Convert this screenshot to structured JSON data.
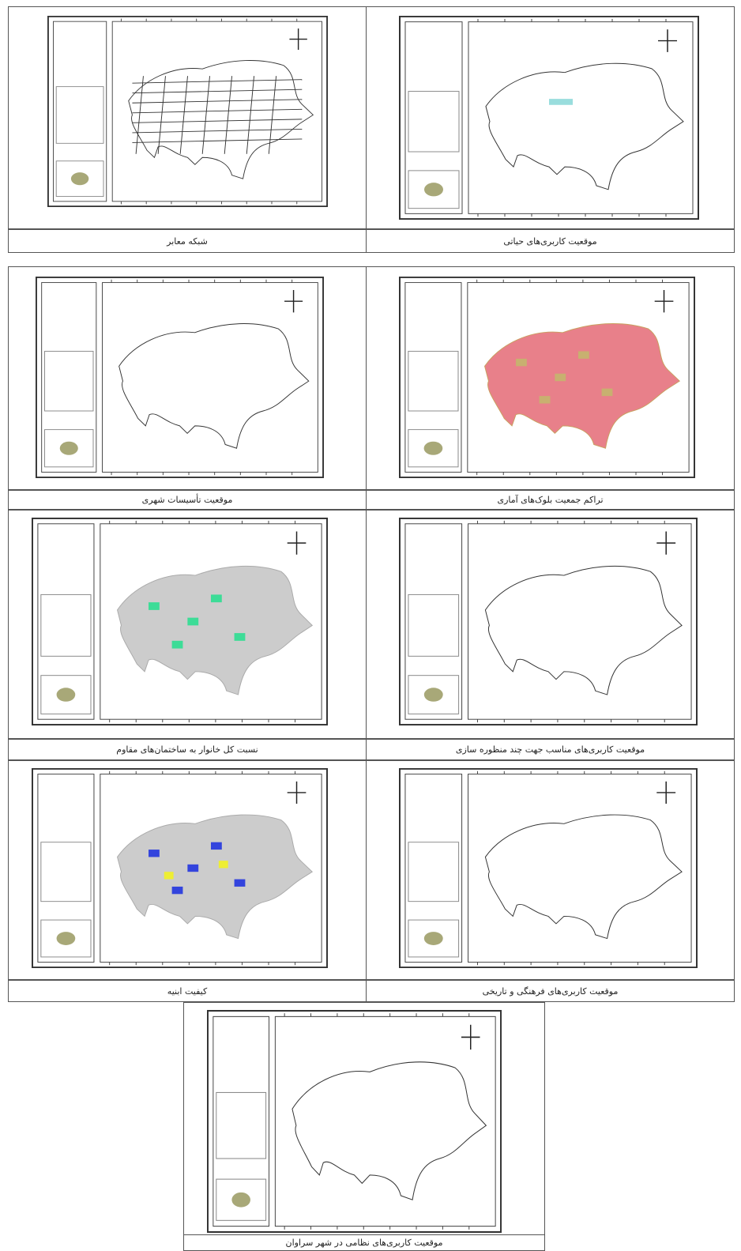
{
  "figures": [
    {
      "caption": "موقعیت کاربری‌های حیاتی"
    },
    {
      "caption": "شبکه معابر"
    },
    {
      "caption": "تراکم جمعیت بلوک‌های آماری"
    },
    {
      "caption": "موقعیت تأسیسات شهری"
    },
    {
      "caption": "موقعیت کاربری‌های مناسب جهت چند منظوره سازی"
    },
    {
      "caption": "نسبت کل خانوار به ساختمان‌های مقاوم"
    },
    {
      "caption": "موقعیت کاربری‌های فرهنگی و تاریخی"
    },
    {
      "caption": "کیفیت ابنیه"
    },
    {
      "caption": "موقعیت کاربری‌های نظامی در شهر سراوان"
    }
  ]
}
